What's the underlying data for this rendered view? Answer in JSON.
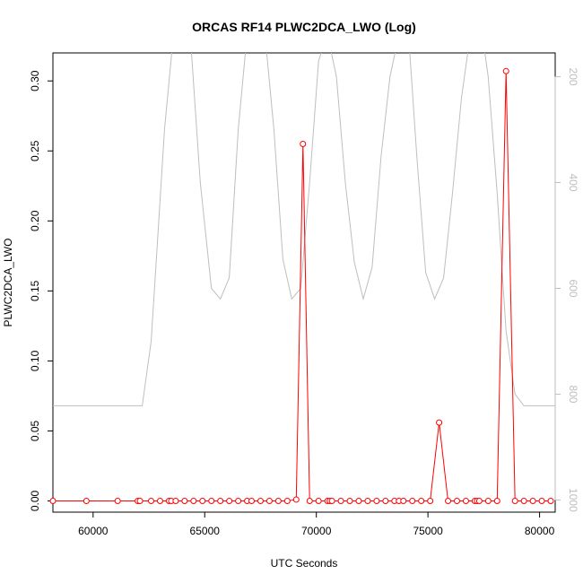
{
  "chart_data": {
    "type": "line",
    "title": "ORCAS RF14 PLWC2DCA_LWO (Log)",
    "xlabel": "UTC Seconds",
    "ylabel": "PLWC2DCA_LWO",
    "xlim": [
      58200,
      80700
    ],
    "ylim": [
      -0.008,
      0.32
    ],
    "xticks": [
      "60000",
      "65000",
      "70000",
      "75000",
      "80000"
    ],
    "yticks": [
      "0.00",
      "0.05",
      "0.10",
      "0.15",
      "0.20",
      "0.25",
      "0.30"
    ],
    "y2ticks": [
      "200",
      "400",
      "600",
      "800",
      "1000"
    ],
    "y2lim": [
      1023,
      155
    ],
    "grid": false,
    "colors": {
      "primary": "#ff0000",
      "secondary": "#bebebe",
      "axis": "#000000"
    },
    "series": [
      {
        "role": "primary",
        "style": "line+open-circle",
        "x": [
          58200,
          59700,
          61100,
          62000,
          62100,
          62600,
          63000,
          63400,
          63500,
          63700,
          64100,
          64500,
          64900,
          65300,
          65700,
          66100,
          66500,
          66900,
          67100,
          67500,
          67900,
          68300,
          68700,
          69100,
          69400,
          69700,
          70100,
          70500,
          70600,
          70700,
          71100,
          71500,
          71900,
          72300,
          72700,
          73100,
          73500,
          73700,
          73900,
          74300,
          74700,
          75100,
          75500,
          75900,
          76300,
          76700,
          77100,
          77200,
          77300,
          77700,
          78100,
          78500,
          78900,
          79300,
          79700,
          80100,
          80500
        ],
        "y": [
          0,
          0,
          0,
          0,
          0,
          0,
          0,
          0,
          0,
          0,
          0,
          0,
          0,
          0,
          0,
          0,
          0,
          0,
          0,
          0,
          0,
          0,
          0,
          0.001,
          0.255,
          0,
          0,
          0,
          0,
          0,
          0,
          0,
          0,
          0,
          0,
          0,
          0,
          0,
          0,
          0,
          0,
          0,
          0.056,
          0,
          0,
          0,
          0,
          0,
          0,
          0,
          0,
          0.307,
          0,
          0,
          0,
          0,
          0
        ]
      },
      {
        "role": "secondary",
        "style": "line",
        "x": [
          58200,
          62200,
          62600,
          62900,
          63200,
          63600,
          64000,
          64400,
          64800,
          65300,
          65700,
          66100,
          66500,
          66900,
          67300,
          67700,
          68100,
          68500,
          68900,
          69300,
          69700,
          70100,
          70500,
          70900,
          71300,
          71700,
          72100,
          72500,
          72900,
          73300,
          73700,
          74100,
          74500,
          74900,
          75300,
          75700,
          76100,
          76500,
          76900,
          77300,
          77700,
          78100,
          78500,
          78900,
          79300,
          80700
        ],
        "y": [
          822,
          822,
          700,
          500,
          300,
          120,
          120,
          150,
          400,
          600,
          620,
          580,
          300,
          120,
          80,
          120,
          300,
          545,
          620,
          600,
          400,
          170,
          120,
          200,
          400,
          550,
          620,
          560,
          350,
          200,
          120,
          100,
          350,
          570,
          620,
          580,
          420,
          240,
          120,
          80,
          200,
          420,
          680,
          800,
          822,
          822
        ]
      }
    ]
  }
}
